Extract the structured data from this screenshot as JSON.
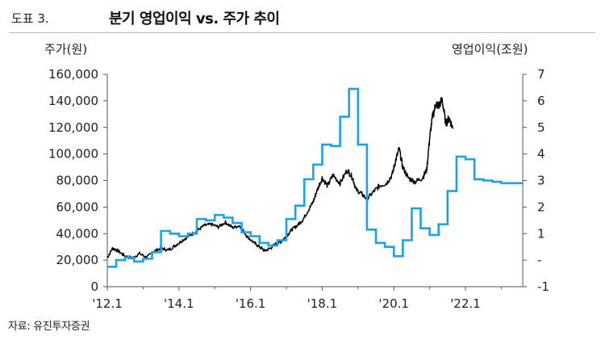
{
  "header": {
    "figure_number": "도표 3.",
    "title": "분기 영업이익 vs. 주가 추이"
  },
  "chart_data": {
    "type": "line",
    "title": "분기 영업이익 vs. 주가 추이",
    "left_axis_label": "주가(원)",
    "right_axis_label": "영업이익(조원)",
    "source": "자료: 유진투자증권",
    "x_range": [
      2012.0,
      2023.6
    ],
    "x_ticks": [
      {
        "x": 2012.0,
        "label": "'12.1"
      },
      {
        "x": 2014.0,
        "label": "'14.1"
      },
      {
        "x": 2016.0,
        "label": "'16.1"
      },
      {
        "x": 2018.0,
        "label": "'18.1"
      },
      {
        "x": 2020.0,
        "label": "'20.1"
      },
      {
        "x": 2022.0,
        "label": "'22.1"
      }
    ],
    "left_axis": {
      "min": 0,
      "max": 160000,
      "ticks": [
        0,
        20000,
        40000,
        60000,
        80000,
        100000,
        120000,
        140000,
        160000
      ],
      "tick_labels": [
        "0",
        "20,000",
        "40,000",
        "60,000",
        "80,000",
        "100,000",
        "120,000",
        "140,000",
        "160,000"
      ]
    },
    "right_axis": {
      "min": -1,
      "max": 7,
      "ticks": [
        -1,
        0,
        1,
        2,
        3,
        4,
        5,
        6,
        7
      ],
      "tick_labels": [
        "-1",
        "-",
        "1",
        "2",
        "3",
        "4",
        "5",
        "6",
        "7"
      ]
    },
    "series": [
      {
        "axis": "left",
        "color": "#000000",
        "style": "line",
        "points": [
          [
            2012.0,
            22000
          ],
          [
            2012.15,
            29000
          ],
          [
            2012.3,
            27000
          ],
          [
            2012.5,
            23000
          ],
          [
            2012.7,
            21500
          ],
          [
            2012.9,
            25000
          ],
          [
            2013.1,
            22000
          ],
          [
            2013.3,
            26500
          ],
          [
            2013.5,
            29000
          ],
          [
            2013.7,
            27500
          ],
          [
            2013.9,
            31000
          ],
          [
            2014.1,
            35000
          ],
          [
            2014.3,
            38500
          ],
          [
            2014.5,
            42000
          ],
          [
            2014.7,
            46000
          ],
          [
            2014.9,
            47000
          ],
          [
            2015.1,
            45000
          ],
          [
            2015.3,
            48500
          ],
          [
            2015.5,
            44500
          ],
          [
            2015.7,
            46000
          ],
          [
            2015.9,
            38000
          ],
          [
            2016.1,
            33000
          ],
          [
            2016.25,
            30000
          ],
          [
            2016.4,
            27000
          ],
          [
            2016.55,
            29000
          ],
          [
            2016.7,
            32000
          ],
          [
            2016.85,
            34000
          ],
          [
            2017.0,
            38000
          ],
          [
            2017.15,
            43000
          ],
          [
            2017.3,
            46000
          ],
          [
            2017.45,
            50000
          ],
          [
            2017.6,
            57000
          ],
          [
            2017.75,
            64000
          ],
          [
            2017.85,
            72000
          ],
          [
            2018.0,
            82000
          ],
          [
            2018.15,
            76000
          ],
          [
            2018.3,
            84000
          ],
          [
            2018.5,
            78000
          ],
          [
            2018.7,
            88000
          ],
          [
            2018.85,
            82000
          ],
          [
            2018.95,
            73000
          ],
          [
            2019.1,
            70000
          ],
          [
            2019.25,
            66000
          ],
          [
            2019.45,
            72000
          ],
          [
            2019.6,
            76000
          ],
          [
            2019.8,
            78000
          ],
          [
            2019.95,
            84000
          ],
          [
            2020.05,
            95000
          ],
          [
            2020.15,
            104000
          ],
          [
            2020.25,
            90000
          ],
          [
            2020.4,
            82000
          ],
          [
            2020.6,
            79000
          ],
          [
            2020.8,
            82000
          ],
          [
            2020.92,
            88000
          ],
          [
            2021.0,
            112000
          ],
          [
            2021.08,
            128000
          ],
          [
            2021.18,
            138000
          ],
          [
            2021.25,
            136000
          ],
          [
            2021.35,
            141000
          ],
          [
            2021.45,
            123000
          ],
          [
            2021.55,
            127000
          ],
          [
            2021.65,
            119000
          ]
        ]
      },
      {
        "axis": "right",
        "color": "#1aa3e8",
        "style": "step",
        "points": [
          [
            2012.0,
            -0.25
          ],
          [
            2012.25,
            0.0
          ],
          [
            2012.5,
            0.1
          ],
          [
            2012.75,
            -0.05
          ],
          [
            2013.0,
            0.05
          ],
          [
            2013.25,
            0.3
          ],
          [
            2013.5,
            1.1
          ],
          [
            2013.75,
            1.0
          ],
          [
            2014.0,
            0.9
          ],
          [
            2014.25,
            1.0
          ],
          [
            2014.5,
            1.55
          ],
          [
            2014.75,
            1.5
          ],
          [
            2015.0,
            1.7
          ],
          [
            2015.25,
            1.6
          ],
          [
            2015.5,
            1.4
          ],
          [
            2015.75,
            1.05
          ],
          [
            2016.0,
            0.9
          ],
          [
            2016.25,
            0.65
          ],
          [
            2016.5,
            0.55
          ],
          [
            2016.75,
            0.75
          ],
          [
            2017.0,
            1.55
          ],
          [
            2017.25,
            2.05
          ],
          [
            2017.5,
            3.05
          ],
          [
            2017.75,
            3.6
          ],
          [
            2018.0,
            4.35
          ],
          [
            2018.25,
            4.3
          ],
          [
            2018.5,
            5.4
          ],
          [
            2018.75,
            6.45
          ],
          [
            2019.0,
            4.35
          ],
          [
            2019.25,
            1.15
          ],
          [
            2019.5,
            0.65
          ],
          [
            2019.75,
            0.5
          ],
          [
            2020.0,
            0.15
          ],
          [
            2020.25,
            0.75
          ],
          [
            2020.5,
            1.95
          ],
          [
            2020.75,
            1.2
          ],
          [
            2021.0,
            0.95
          ],
          [
            2021.25,
            1.35
          ],
          [
            2021.5,
            2.6
          ],
          [
            2021.75,
            3.9
          ],
          [
            2022.0,
            3.8
          ],
          [
            2022.25,
            3.05
          ],
          [
            2022.5,
            3.0
          ],
          [
            2022.75,
            2.95
          ],
          [
            2023.0,
            2.9
          ],
          [
            2023.25,
            2.9
          ],
          [
            2023.6,
            2.9
          ]
        ]
      }
    ],
    "grid": false,
    "legend": "none"
  }
}
